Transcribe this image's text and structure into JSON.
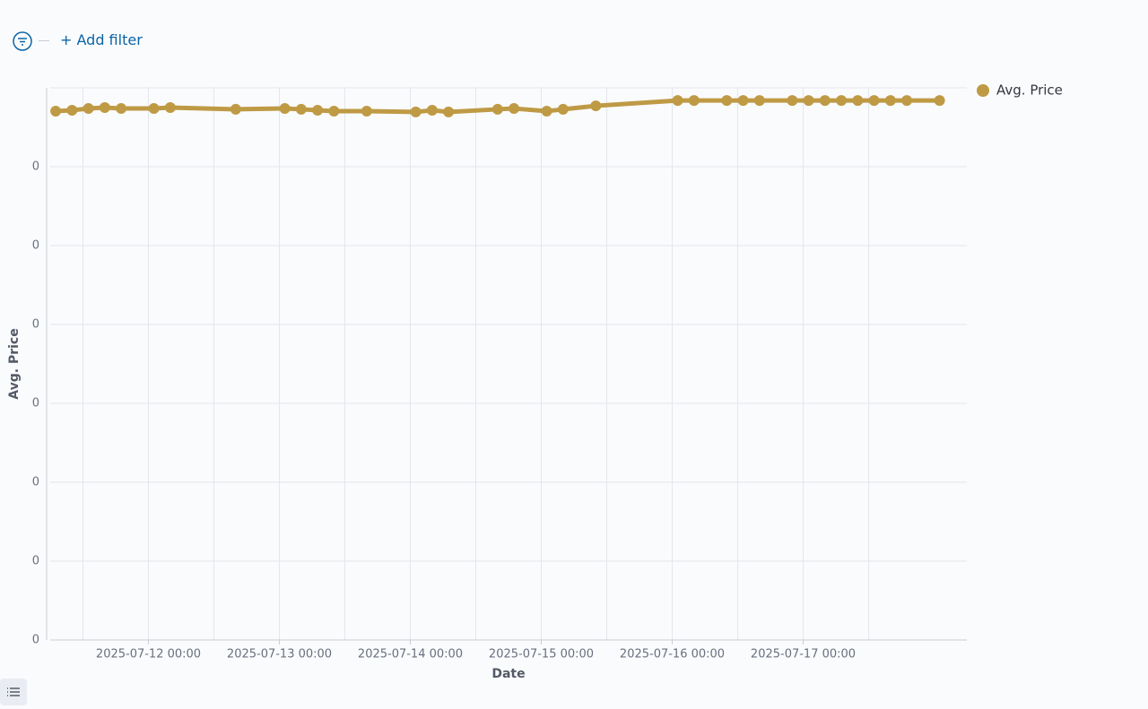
{
  "filter_bar": {
    "add_filter": "+ Add filter"
  },
  "chart_data": {
    "type": "line",
    "x_label": "Date",
    "y_label": "Avg. Price",
    "x": [
      "2025-07-11 07:00",
      "2025-07-11 10:00",
      "2025-07-11 13:00",
      "2025-07-11 16:00",
      "2025-07-11 19:00",
      "2025-07-12 01:00",
      "2025-07-12 04:00",
      "2025-07-12 16:00",
      "2025-07-13 01:00",
      "2025-07-13 04:00",
      "2025-07-13 07:00",
      "2025-07-13 10:00",
      "2025-07-13 16:00",
      "2025-07-14 01:00",
      "2025-07-14 04:00",
      "2025-07-14 07:00",
      "2025-07-14 16:00",
      "2025-07-14 19:00",
      "2025-07-15 01:00",
      "2025-07-15 04:00",
      "2025-07-15 10:00",
      "2025-07-16 01:00",
      "2025-07-16 04:00",
      "2025-07-16 10:00",
      "2025-07-16 13:00",
      "2025-07-16 16:00",
      "2025-07-16 22:00",
      "2025-07-17 01:00",
      "2025-07-17 04:00",
      "2025-07-17 07:00",
      "2025-07-17 10:00",
      "2025-07-17 13:00",
      "2025-07-17 16:00",
      "2025-07-17 19:00",
      "2025-07-18 01:00"
    ],
    "series": [
      {
        "name": "Avg. Price",
        "color": "#bf9a45",
        "values": [
          0.003352,
          0.003358,
          0.003369,
          0.003375,
          0.003369,
          0.003369,
          0.003375,
          0.003364,
          0.003369,
          0.003364,
          0.003358,
          0.003352,
          0.003352,
          0.003347,
          0.003358,
          0.003347,
          0.003364,
          0.003369,
          0.003352,
          0.003364,
          0.003386,
          0.00342,
          0.00342,
          0.00342,
          0.00342,
          0.00342,
          0.00342,
          0.00342,
          0.00342,
          0.00342,
          0.00342,
          0.00342,
          0.00342,
          0.00342,
          0.00342
        ]
      }
    ],
    "xlim": [
      "2025-07-11 06:00",
      "2025-07-18 06:00"
    ],
    "xticks": [
      "2025-07-12 00:00",
      "2025-07-13 00:00",
      "2025-07-14 00:00",
      "2025-07-15 00:00",
      "2025-07-16 00:00",
      "2025-07-17 00:00"
    ],
    "ylim": [
      0,
      0.0035
    ],
    "yticks": [
      0,
      {
        "value": 0.0005,
        "label": "0"
      },
      {
        "value": 0.001,
        "label": "0"
      },
      {
        "value": 0.0015,
        "label": "0"
      },
      {
        "value": 0.002,
        "label": "0"
      },
      {
        "value": 0.0025,
        "label": "0"
      },
      {
        "value": 0.003,
        "label": "0"
      }
    ],
    "grid": true,
    "legend": "right"
  }
}
